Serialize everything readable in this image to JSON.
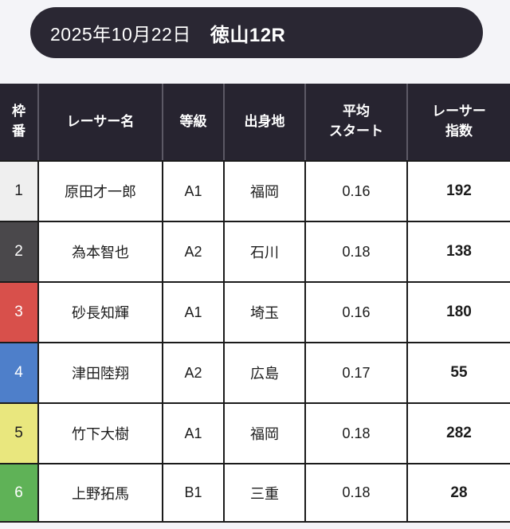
{
  "page": {
    "background": "#f4f4f8"
  },
  "title_bar": {
    "date": "2025年10月22日",
    "race": "徳山12R",
    "bg": "#2a2733",
    "text_color": "#ffffff"
  },
  "table": {
    "header_bg": "#272430",
    "header_text_color": "#ffffff",
    "header_separator_color": "#5c5965",
    "body_border_color": "#1b1b1b",
    "columns": [
      {
        "key": "waku",
        "label": "枠\n番"
      },
      {
        "key": "name",
        "label": "レーサー名"
      },
      {
        "key": "grade",
        "label": "等級"
      },
      {
        "key": "origin",
        "label": "出身地"
      },
      {
        "key": "avg_start",
        "label": "平均\nスタート"
      },
      {
        "key": "index",
        "label": "レーサー\n指数"
      }
    ],
    "frame_colors": {
      "1": "#efefef",
      "2": "#4a484b",
      "3": "#d8504b",
      "4": "#4e7fca",
      "5": "#e9e77e",
      "6": "#5fb257"
    },
    "rows": [
      {
        "waku": "1",
        "name": "原田才一郎",
        "grade": "A1",
        "origin": "福岡",
        "avg_start": "0.16",
        "index": "192",
        "waku_style": "background:#efefef;color:#1d1d1f"
      },
      {
        "waku": "2",
        "name": "為本智也",
        "grade": "A2",
        "origin": "石川",
        "avg_start": "0.18",
        "index": "138",
        "waku_style": "background:#4a484b;color:#ffffff"
      },
      {
        "waku": "3",
        "name": "砂長知輝",
        "grade": "A1",
        "origin": "埼玉",
        "avg_start": "0.16",
        "index": "180",
        "waku_style": "background:#d8504b;color:#ffffff"
      },
      {
        "waku": "4",
        "name": "津田陸翔",
        "grade": "A2",
        "origin": "広島",
        "avg_start": "0.17",
        "index": "55",
        "waku_style": "background:#4e7fca;color:#ffffff"
      },
      {
        "waku": "5",
        "name": "竹下大樹",
        "grade": "A1",
        "origin": "福岡",
        "avg_start": "0.18",
        "index": "282",
        "waku_style": "background:#e9e77e;color:#1d1d1f"
      },
      {
        "waku": "6",
        "name": "上野拓馬",
        "grade": "B1",
        "origin": "三重",
        "avg_start": "0.18",
        "index": "28",
        "waku_style": "background:#5fb257;color:#ffffff"
      }
    ]
  }
}
